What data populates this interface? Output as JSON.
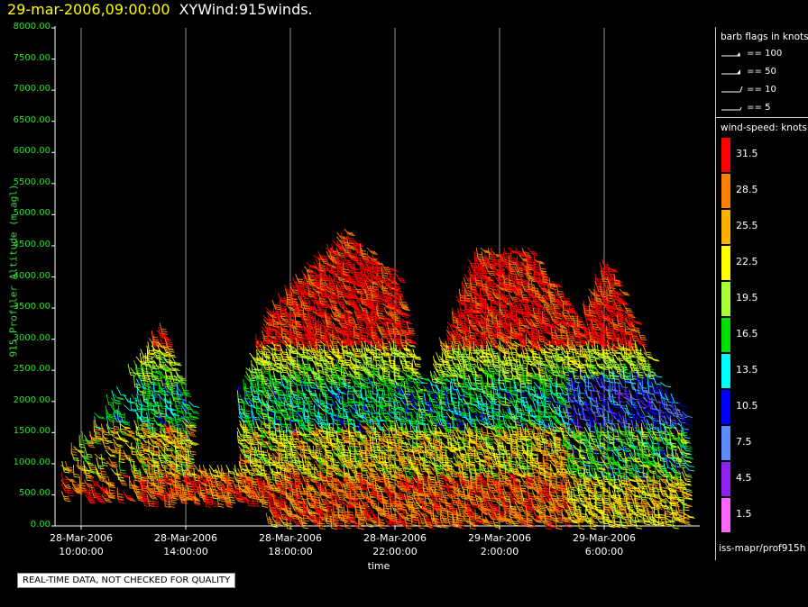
{
  "title": {
    "timestamp": "29-mar-2006,09:00:00",
    "name": "XYWind:915winds."
  },
  "chart_data": {
    "type": "wind barb profile",
    "xlabel": "time",
    "ylabel": "915 Profiler Altitude (m agl)",
    "ylim": [
      0,
      8000
    ],
    "y_ticks": [
      "0.00",
      "500.00",
      "1000.00",
      "1500.00",
      "2000.00",
      "2500.00",
      "3000.00",
      "3500.00",
      "4000.00",
      "4500.00",
      "5000.00",
      "5500.00",
      "6000.00",
      "6500.00",
      "7000.00",
      "7500.00",
      "8000.00"
    ],
    "x_ticks": [
      {
        "date": "28-Mar-2006",
        "time": "10:00:00"
      },
      {
        "date": "28-Mar-2006",
        "time": "14:00:00"
      },
      {
        "date": "28-Mar-2006",
        "time": "18:00:00"
      },
      {
        "date": "28-Mar-2006",
        "time": "22:00:00"
      },
      {
        "date": "29-Mar-2006",
        "time": "2:00:00"
      },
      {
        "date": "29-Mar-2006",
        "time": "6:00:00"
      }
    ],
    "grid": "vertical lines at time ticks",
    "max_altitude_by_time": [
      {
        "time": "28-Mar-2006 09:00",
        "top_m": 1000
      },
      {
        "time": "28-Mar-2006 13:00",
        "top_m": 3300
      },
      {
        "time": "28-Mar-2006 15:00",
        "top_m": 950
      },
      {
        "time": "28-Mar-2006 17:00",
        "top_m": 3500
      },
      {
        "time": "28-Mar-2006 18:00",
        "top_m": 4000
      },
      {
        "time": "28-Mar-2006 20:00",
        "top_m": 4800
      },
      {
        "time": "28-Mar-2006 22:00",
        "top_m": 4100
      },
      {
        "time": "28-Mar-2006 23:00",
        "top_m": 2200
      },
      {
        "time": "29-Mar-2006 01:00",
        "top_m": 4500
      },
      {
        "time": "29-Mar-2006 03:00",
        "top_m": 4500
      },
      {
        "time": "29-Mar-2006 05:00",
        "top_m": 3400
      },
      {
        "time": "29-Mar-2006 06:00",
        "top_m": 4400
      },
      {
        "time": "29-Mar-2006 08:00",
        "top_m": 2400
      },
      {
        "time": "29-Mar-2006 09:00",
        "top_m": 1900
      }
    ]
  },
  "legend": {
    "barb_header": "barb flags in knots",
    "barbs": [
      "== 100",
      "== 50",
      "== 10",
      "== 5"
    ],
    "speed_header": "wind-speed: knots",
    "speed_scale": [
      {
        "label": "31.5",
        "color": "#ff0000"
      },
      {
        "label": "28.5",
        "color": "#ff7f00"
      },
      {
        "label": "25.5",
        "color": "#ffb000"
      },
      {
        "label": "22.5",
        "color": "#ffff00"
      },
      {
        "label": "19.5",
        "color": "#a8ff33"
      },
      {
        "label": "16.5",
        "color": "#00e000"
      },
      {
        "label": "13.5",
        "color": "#00ffff"
      },
      {
        "label": "10.5",
        "color": "#0000ff"
      },
      {
        "label": "7.5",
        "color": "#5c8cff"
      },
      {
        "label": "4.5",
        "color": "#9020f0"
      },
      {
        "label": "1.5",
        "color": "#ff66ff"
      }
    ]
  },
  "source": "iss-mapr/prof915h",
  "note": "REAL-TIME DATA, NOT CHECKED FOR QUALITY"
}
